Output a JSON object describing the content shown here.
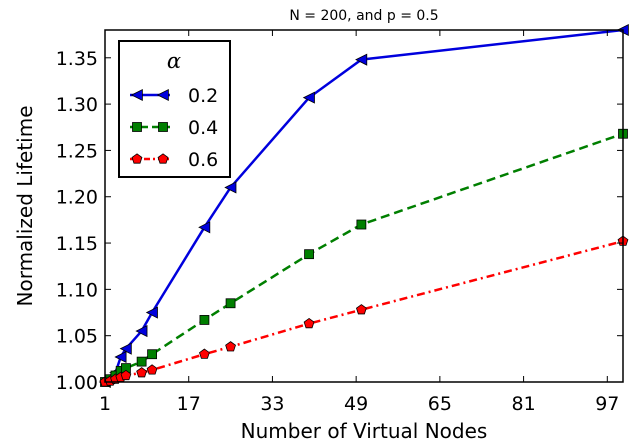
{
  "chart_data": {
    "type": "line",
    "title": "N = 200, and p = 0.5",
    "xlabel": "Number of Virtual Nodes",
    "ylabel": "Normalized Lifetime",
    "xlim": [
      1,
      100
    ],
    "ylim": [
      1.0,
      1.38
    ],
    "xticks": [
      "1",
      "17",
      "33",
      "49",
      "65",
      "81",
      "97"
    ],
    "yticks": [
      "1.00",
      "1.05",
      "1.10",
      "1.15",
      "1.20",
      "1.25",
      "1.30",
      "1.35"
    ],
    "grid": false,
    "legend": {
      "title": "α",
      "placement": "top-left"
    },
    "series": [
      {
        "name": "0.2",
        "color": "#0000dd",
        "line_style": "solid",
        "marker": "left-triangle",
        "x": [
          1,
          2,
          3,
          4,
          5,
          8,
          10,
          20,
          25,
          40,
          50,
          100
        ],
        "y": [
          1.0,
          1.005,
          1.01,
          1.027,
          1.036,
          1.055,
          1.075,
          1.167,
          1.21,
          1.307,
          1.348,
          1.38
        ]
      },
      {
        "name": "0.4",
        "color": "#007f00",
        "line_style": "dashed",
        "marker": "square",
        "x": [
          1,
          2,
          3,
          4,
          5,
          8,
          10,
          20,
          25,
          40,
          50,
          100
        ],
        "y": [
          1.0,
          1.003,
          1.007,
          1.012,
          1.015,
          1.022,
          1.03,
          1.067,
          1.085,
          1.138,
          1.17,
          1.268
        ]
      },
      {
        "name": "0.6",
        "color": "#ff0000",
        "line_style": "dash-dot",
        "marker": "pentagon",
        "x": [
          1,
          2,
          3,
          4,
          5,
          8,
          10,
          20,
          25,
          40,
          50,
          100
        ],
        "y": [
          1.0,
          1.001,
          1.003,
          1.005,
          1.007,
          1.01,
          1.013,
          1.03,
          1.038,
          1.063,
          1.078,
          1.152
        ]
      }
    ]
  }
}
